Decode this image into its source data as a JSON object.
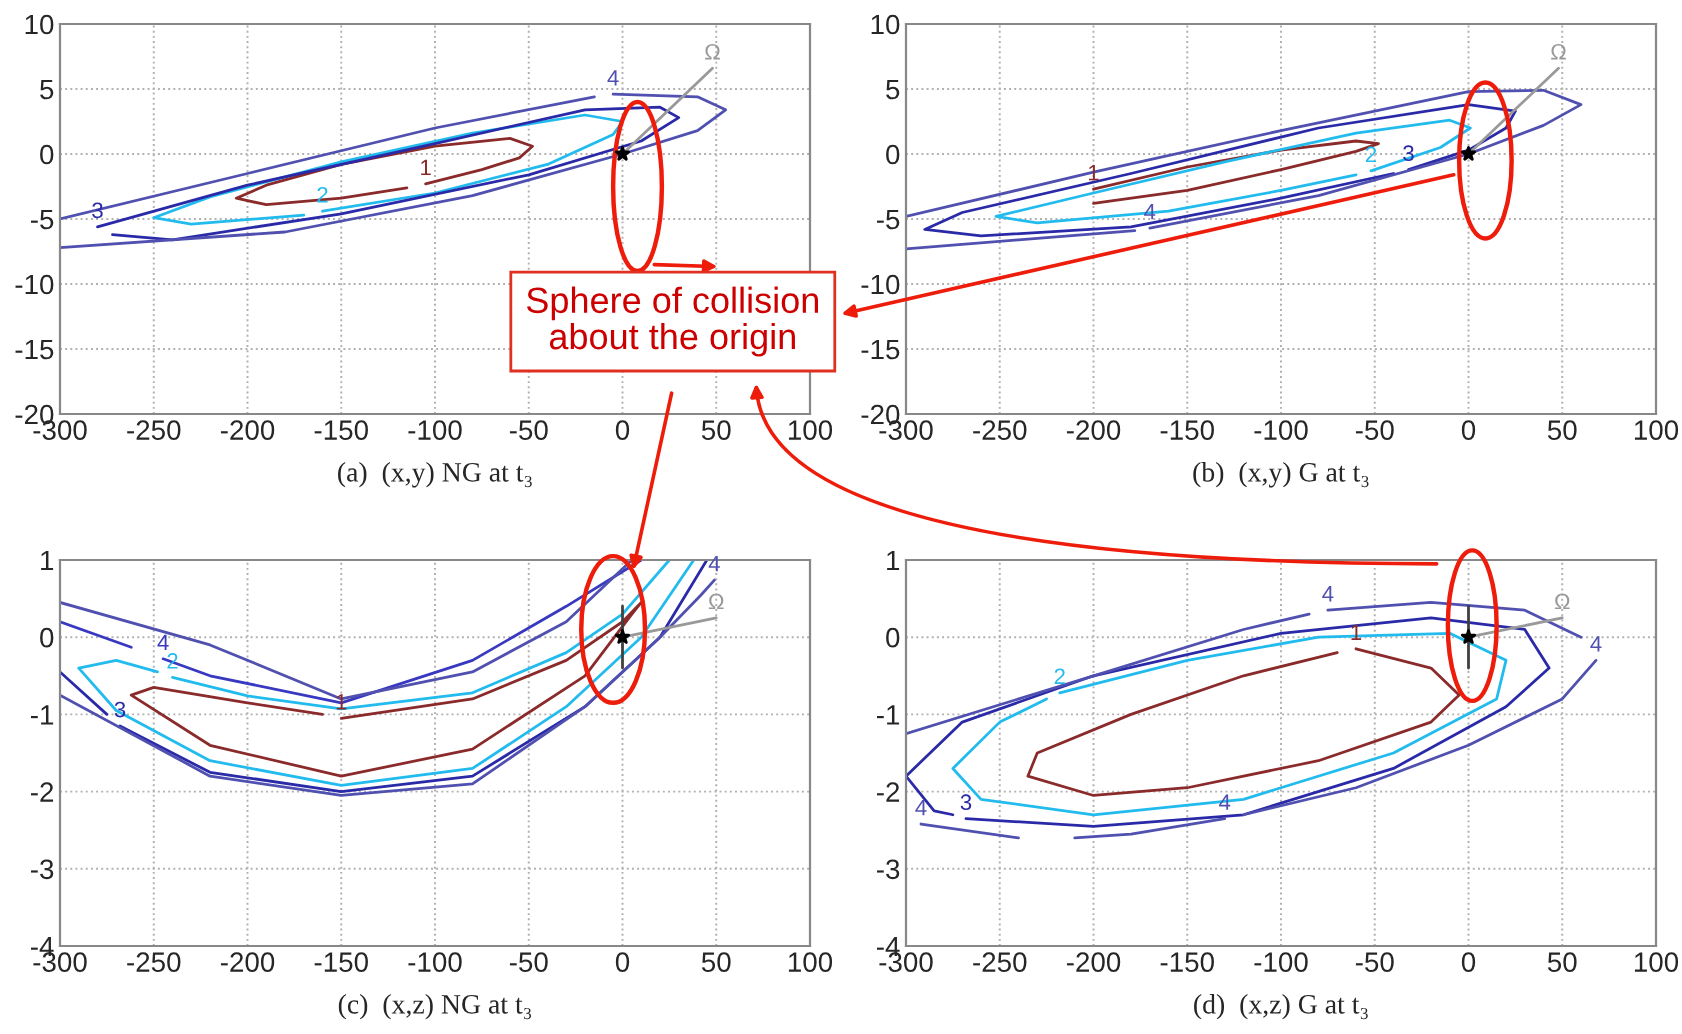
{
  "chart_data": [
    {
      "type": "line",
      "xlabel": "(a)  (x,y) NG at t₃",
      "xlim": [
        -300,
        100
      ],
      "ylim": [
        -20,
        10
      ],
      "xticks": [
        -300,
        -250,
        -200,
        -150,
        -100,
        -50,
        0,
        50,
        100
      ],
      "yticks": [
        -20,
        -15,
        -10,
        -5,
        0,
        5,
        10
      ],
      "grid": true,
      "annotations": [
        "Sphere of collision\nabout the origin"
      ],
      "series": [
        {
          "name": "1",
          "color": "#8b2a2a",
          "x": [
            -105,
            -75,
            -55,
            -48,
            -60,
            -100,
            -150,
            -190,
            -206,
            -190,
            -150,
            -115
          ],
          "values": [
            -2.3,
            -1.2,
            -0.3,
            0.6,
            1.2,
            0.6,
            -0.8,
            -2.4,
            -3.4,
            -3.9,
            -3.4,
            -2.6
          ]
        },
        {
          "name": "2",
          "color": "#22bbee",
          "x": [
            -160,
            -100,
            -40,
            -5,
            0,
            -20,
            -80,
            -150,
            -220,
            -250,
            -230,
            -170
          ],
          "values": [
            -4.4,
            -3.0,
            -0.8,
            1.5,
            2.5,
            3.0,
            1.6,
            -0.6,
            -3.3,
            -4.9,
            -5.4,
            -4.7
          ]
        },
        {
          "name": "3",
          "color": "#2a2aa8",
          "x": [
            -280,
            -200,
            -100,
            -20,
            20,
            30,
            10,
            -50,
            -150,
            -240,
            -272
          ],
          "values": [
            -5.6,
            -2.4,
            0.8,
            3.4,
            3.6,
            2.8,
            1.0,
            -1.6,
            -4.6,
            -6.6,
            -6.2
          ]
        },
        {
          "name": "4",
          "color": "#5050b0",
          "x": [
            -5,
            40,
            55,
            40,
            0,
            -80,
            -180,
            -300,
            null,
            -300,
            -200,
            -100,
            -15
          ],
          "values": [
            4.6,
            4.4,
            3.4,
            1.8,
            0.0,
            -3.2,
            -6.0,
            -7.2,
            null,
            -5.0,
            -1.5,
            2.0,
            4.4
          ]
        },
        {
          "name": "Ω",
          "color": "#999999",
          "x": [
            48,
            0
          ],
          "values": [
            6.6,
            0
          ]
        },
        {
          "type": "scatter",
          "color": "#000000",
          "marker": "star",
          "x": [
            0
          ],
          "values": [
            0
          ]
        }
      ]
    },
    {
      "type": "line",
      "xlabel": "(b)  (x,y) G at t₃",
      "xlim": [
        -300,
        100
      ],
      "ylim": [
        -20,
        10
      ],
      "xticks": [
        -300,
        -250,
        -200,
        -150,
        -100,
        -50,
        0,
        50,
        100
      ],
      "yticks": [
        -20,
        -15,
        -10,
        -5,
        0,
        5,
        10
      ],
      "grid": true,
      "series": [
        {
          "name": "1",
          "color": "#8b2a2a",
          "x": [
            -200,
            -150,
            -100,
            -60,
            -48,
            -60,
            -100,
            -150,
            -200
          ],
          "values": [
            -2.7,
            -1.0,
            0.3,
            1.0,
            0.8,
            0.2,
            -1.2,
            -2.8,
            -3.8
          ]
        },
        {
          "name": "2",
          "color": "#22bbee",
          "x": [
            -52,
            -15,
            1,
            -10,
            -60,
            -130,
            -200,
            -252,
            -230,
            -160,
            -100,
            -60
          ],
          "values": [
            -1.3,
            0.5,
            2.0,
            2.6,
            1.6,
            -0.6,
            -3.0,
            -4.8,
            -5.3,
            -4.4,
            -2.8,
            -1.6
          ]
        },
        {
          "name": "3",
          "color": "#2a2aa8",
          "x": [
            -32,
            0,
            20,
            25,
            0,
            -80,
            -180,
            -270,
            -290,
            -260,
            -180,
            -100,
            -40
          ],
          "values": [
            -1.2,
            0.3,
            2.0,
            3.3,
            3.8,
            2.0,
            -1.5,
            -4.5,
            -5.8,
            -6.3,
            -5.6,
            -3.4,
            -1.5
          ]
        },
        {
          "name": "4",
          "color": "#5050b0",
          "x": [
            -170,
            -80,
            0,
            40,
            60,
            40,
            0,
            -100,
            -200,
            -300,
            null,
            -300,
            -240,
            -178
          ],
          "values": [
            -5.7,
            -3.2,
            0.0,
            2.2,
            3.8,
            4.9,
            4.8,
            1.8,
            -1.4,
            -4.8,
            null,
            -7.3,
            -6.6,
            -5.9
          ]
        },
        {
          "name": "Ω",
          "color": "#999999",
          "x": [
            48,
            0
          ],
          "values": [
            6.6,
            0
          ]
        },
        {
          "type": "scatter",
          "color": "#000000",
          "marker": "star",
          "x": [
            0
          ],
          "values": [
            0
          ]
        }
      ]
    },
    {
      "type": "line",
      "xlabel": "(c)  (x,z) NG at t₃",
      "xlim": [
        -300,
        100
      ],
      "ylim": [
        -4,
        1
      ],
      "xticks": [
        -300,
        -250,
        -200,
        -150,
        -100,
        -50,
        0,
        50,
        100
      ],
      "yticks": [
        -4,
        -3,
        -2,
        -1,
        0,
        1
      ],
      "grid": true,
      "series": [
        {
          "name": "1",
          "color": "#8b2a2a",
          "x": [
            -150,
            -80,
            -30,
            0,
            10,
            5,
            -20,
            -80,
            -150,
            -220,
            -262,
            -250,
            -200,
            -160
          ],
          "values": [
            -1.05,
            -0.8,
            -0.3,
            0.2,
            0.45,
            0.3,
            -0.5,
            -1.45,
            -1.8,
            -1.4,
            -0.75,
            -0.65,
            -0.85,
            -1.0
          ]
        },
        {
          "name": "2",
          "color": "#22bbee",
          "x": [
            -240,
            -200,
            -150,
            -80,
            -30,
            0,
            25,
            null,
            38,
            10,
            -30,
            -80,
            -150,
            -220,
            -270,
            -290,
            -270,
            -248
          ],
          "values": [
            -0.52,
            -0.76,
            -0.93,
            -0.72,
            -0.2,
            0.3,
            1.0,
            null,
            1.0,
            0.0,
            -0.9,
            -1.7,
            -1.92,
            -1.6,
            -0.95,
            -0.4,
            -0.3,
            -0.45
          ]
        },
        {
          "name": "3",
          "color": "#2a2aa8",
          "x": [
            -268,
            -220,
            -150,
            -80,
            -20,
            20,
            45,
            null,
            -300,
            -275
          ],
          "values": [
            -1.15,
            -1.75,
            -2.0,
            -1.8,
            -0.9,
            0.0,
            1.0,
            null,
            -0.45,
            -1.0
          ]
        },
        {
          "name": "4",
          "color": "#3838c0",
          "x": [
            -245,
            -220,
            -150,
            -80,
            -30,
            10,
            null,
            -300,
            -262
          ],
          "values": [
            -0.28,
            -0.5,
            -0.85,
            -0.3,
            0.4,
            1.0,
            null,
            0.2,
            -0.13
          ]
        },
        {
          "name": "4",
          "color": "#5050b0",
          "x": [
            49,
            42,
            20,
            -20,
            -80,
            -150,
            -220,
            -300,
            null,
            -300,
            -220,
            -150,
            -80,
            -30,
            5
          ],
          "values": [
            0.74,
            0.55,
            0.0,
            -0.9,
            -1.9,
            -2.05,
            -1.8,
            -0.75,
            null,
            0.45,
            -0.1,
            -0.8,
            -0.45,
            0.2,
            1.0
          ]
        },
        {
          "name": "Ω",
          "color": "#999999",
          "x": [
            50,
            0
          ],
          "values": [
            0.25,
            0
          ]
        },
        {
          "color": "#404040",
          "x": [
            0,
            0
          ],
          "values": [
            -0.4,
            0.4
          ]
        },
        {
          "type": "scatter",
          "color": "#000000",
          "marker": "star",
          "x": [
            0
          ],
          "values": [
            0
          ]
        }
      ]
    },
    {
      "type": "line",
      "xlabel": "(d)  (x,z) G at t₃",
      "xlim": [
        -300,
        100
      ],
      "ylim": [
        -4,
        1
      ],
      "xticks": [
        -300,
        -250,
        -200,
        -150,
        -100,
        -50,
        0,
        50,
        100
      ],
      "yticks": [
        -4,
        -3,
        -2,
        -1,
        0,
        1
      ],
      "grid": true,
      "series": [
        {
          "name": "1",
          "color": "#8b2a2a",
          "x": [
            -60,
            -20,
            -5,
            -20,
            -80,
            -150,
            -200,
            -235,
            -230,
            -180,
            -120,
            -70
          ],
          "values": [
            -0.15,
            -0.4,
            -0.75,
            -1.1,
            -1.6,
            -1.95,
            -2.05,
            -1.8,
            -1.5,
            -1.0,
            -0.5,
            -0.2
          ]
        },
        {
          "name": "2",
          "color": "#22bbee",
          "x": [
            -218,
            -150,
            -80,
            -10,
            20,
            15,
            -40,
            -120,
            -200,
            -260,
            -275,
            -250,
            -225
          ],
          "values": [
            -0.72,
            -0.3,
            0.0,
            0.05,
            -0.3,
            -0.8,
            -1.5,
            -2.1,
            -2.3,
            -2.1,
            -1.7,
            -1.1,
            -0.8
          ]
        },
        {
          "name": "3",
          "color": "#2a2aa8",
          "x": [
            -268,
            -200,
            -120,
            -40,
            20,
            43,
            30,
            -20,
            -100,
            -200,
            -270,
            -300,
            -285,
            -275
          ],
          "values": [
            -2.35,
            -2.45,
            -2.3,
            -1.7,
            -0.9,
            -0.4,
            0.1,
            0.25,
            0.05,
            -0.5,
            -1.1,
            -1.8,
            -2.25,
            -2.3
          ]
        },
        {
          "name": "4",
          "color": "#5050b0",
          "x": [
            -75,
            -20,
            30,
            60
          ],
          "values": [
            0.35,
            0.45,
            0.35,
            0.0
          ]
        },
        {
          "name": "4",
          "color": "#5050b0",
          "x": [
            68,
            50,
            0,
            -60,
            -120
          ],
          "values": [
            -0.3,
            -0.8,
            -1.4,
            -1.95,
            -2.3
          ]
        },
        {
          "name": "4",
          "color": "#5050b0",
          "x": [
            -130,
            -180,
            -210
          ],
          "values": [
            -2.35,
            -2.55,
            -2.6
          ]
        },
        {
          "name": "4",
          "color": "#5050b0",
          "x": [
            -292,
            -240
          ],
          "values": [
            -2.42,
            -2.6
          ]
        },
        {
          "color": "#5050b0",
          "x": [
            -300,
            -200,
            -120,
            -85
          ],
          "values": [
            -1.25,
            -0.5,
            0.1,
            0.3
          ]
        },
        {
          "name": "Ω",
          "color": "#999999",
          "x": [
            50,
            0
          ],
          "values": [
            0.25,
            0
          ]
        },
        {
          "color": "#404040",
          "x": [
            0,
            0
          ],
          "values": [
            -0.4,
            0.4
          ]
        },
        {
          "type": "scatter",
          "color": "#000000",
          "marker": "star",
          "x": [
            0
          ],
          "values": [
            0
          ]
        }
      ]
    }
  ]
}
